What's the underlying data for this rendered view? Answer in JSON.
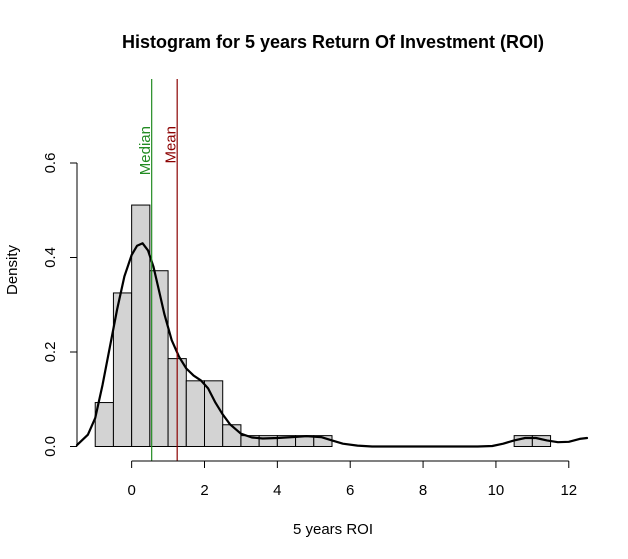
{
  "chart_data": {
    "type": "histogram",
    "title": "Histogram for 5 years Return Of Investment (ROI)",
    "xlabel": "5 years ROI",
    "ylabel": "Density",
    "xlim": [
      -1.5,
      12.5
    ],
    "ylim": [
      0,
      0.6
    ],
    "x_ticks": [
      0,
      2,
      4,
      6,
      8,
      10,
      12
    ],
    "y_ticks": [
      0.0,
      0.2,
      0.4,
      0.6
    ],
    "x_tick_labels": [
      "0",
      "2",
      "4",
      "6",
      "8",
      "10",
      "12"
    ],
    "y_tick_labels": [
      "0.0",
      "0.2",
      "0.4",
      "0.6"
    ],
    "bin_width": 0.5,
    "bins": [
      {
        "start": -1.0,
        "density": 0.093
      },
      {
        "start": -0.5,
        "density": 0.325
      },
      {
        "start": 0.0,
        "density": 0.511
      },
      {
        "start": 0.5,
        "density": 0.372
      },
      {
        "start": 1.0,
        "density": 0.186
      },
      {
        "start": 1.5,
        "density": 0.139
      },
      {
        "start": 2.0,
        "density": 0.139
      },
      {
        "start": 2.5,
        "density": 0.046
      },
      {
        "start": 3.0,
        "density": 0.023
      },
      {
        "start": 3.5,
        "density": 0.023
      },
      {
        "start": 4.0,
        "density": 0.023
      },
      {
        "start": 4.5,
        "density": 0.023
      },
      {
        "start": 5.0,
        "density": 0.023
      },
      {
        "start": 5.5,
        "density": 0.0
      },
      {
        "start": 6.0,
        "density": 0.0
      },
      {
        "start": 6.5,
        "density": 0.0
      },
      {
        "start": 7.0,
        "density": 0.0
      },
      {
        "start": 7.5,
        "density": 0.0
      },
      {
        "start": 8.0,
        "density": 0.0
      },
      {
        "start": 8.5,
        "density": 0.0
      },
      {
        "start": 9.0,
        "density": 0.0
      },
      {
        "start": 9.5,
        "density": 0.0
      },
      {
        "start": 10.0,
        "density": 0.0
      },
      {
        "start": 10.5,
        "density": 0.023
      },
      {
        "start": 11.0,
        "density": 0.023
      }
    ],
    "density_curve": [
      [
        -1.5,
        0.003
      ],
      [
        -1.2,
        0.025
      ],
      [
        -1.0,
        0.06
      ],
      [
        -0.8,
        0.13
      ],
      [
        -0.6,
        0.21
      ],
      [
        -0.4,
        0.29
      ],
      [
        -0.2,
        0.36
      ],
      [
        0.0,
        0.405
      ],
      [
        0.15,
        0.425
      ],
      [
        0.3,
        0.43
      ],
      [
        0.45,
        0.415
      ],
      [
        0.6,
        0.38
      ],
      [
        0.75,
        0.33
      ],
      [
        0.9,
        0.28
      ],
      [
        1.1,
        0.225
      ],
      [
        1.3,
        0.19
      ],
      [
        1.5,
        0.165
      ],
      [
        1.7,
        0.15
      ],
      [
        1.9,
        0.14
      ],
      [
        2.1,
        0.123
      ],
      [
        2.3,
        0.093
      ],
      [
        2.5,
        0.068
      ],
      [
        2.7,
        0.047
      ],
      [
        3.0,
        0.027
      ],
      [
        3.3,
        0.019
      ],
      [
        3.6,
        0.017
      ],
      [
        4.0,
        0.018
      ],
      [
        4.4,
        0.02
      ],
      [
        4.8,
        0.022
      ],
      [
        5.2,
        0.02
      ],
      [
        5.5,
        0.013
      ],
      [
        5.8,
        0.006
      ],
      [
        6.2,
        0.002
      ],
      [
        6.6,
        0.0
      ],
      [
        7.5,
        0.0
      ],
      [
        8.5,
        0.0
      ],
      [
        9.5,
        0.0
      ],
      [
        9.9,
        0.001
      ],
      [
        10.2,
        0.006
      ],
      [
        10.5,
        0.013
      ],
      [
        10.8,
        0.018
      ],
      [
        11.1,
        0.018
      ],
      [
        11.4,
        0.013
      ],
      [
        11.7,
        0.009
      ],
      [
        12.0,
        0.01
      ],
      [
        12.3,
        0.016
      ],
      [
        12.5,
        0.018
      ]
    ],
    "reference_lines": [
      {
        "label": "Median",
        "value": 0.55,
        "color": "#228B22"
      },
      {
        "label": "Mean",
        "value": 1.25,
        "color": "#8B0000"
      }
    ],
    "bar_fill": "#d3d3d3",
    "bar_stroke": "#000000",
    "curve_color": "#000000",
    "grid": false
  }
}
